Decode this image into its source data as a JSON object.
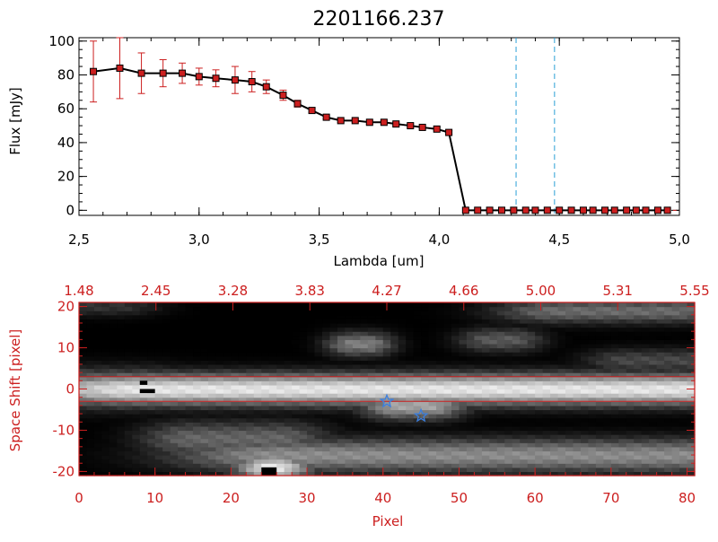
{
  "chart_data": [
    {
      "type": "line",
      "title": "2201166.237",
      "xlabel": "Lambda [um]",
      "ylabel": "Flux [mJy]",
      "xlim": [
        2.5,
        5.0
      ],
      "ylim": [
        -3,
        102
      ],
      "x_ticks": [
        "2.5",
        "3.0",
        "3.5",
        "4.0",
        "4.5",
        "5.0"
      ],
      "y_ticks": [
        "0",
        "20",
        "40",
        "60",
        "80",
        "100"
      ],
      "colors": {
        "line": "#000000",
        "marker": "#cc1f1f",
        "error_bar": "#cc1f1f",
        "vline": "#2a9fd6",
        "zero_line": "#cc1f1f"
      },
      "vertical_lines_x": [
        4.32,
        4.48
      ],
      "series": [
        {
          "x": [
            2.56,
            2.67,
            2.76,
            2.85,
            2.93,
            3.0,
            3.07,
            3.15,
            3.22,
            3.28,
            3.35,
            3.41,
            3.47,
            3.53,
            3.59,
            3.65,
            3.71,
            3.77,
            3.82,
            3.88,
            3.93,
            3.99,
            4.04,
            4.11,
            4.16,
            4.21,
            4.26,
            4.31,
            4.36,
            4.4,
            4.45,
            4.5,
            4.55,
            4.6,
            4.64,
            4.69,
            4.73,
            4.78,
            4.82,
            4.86,
            4.91,
            4.95
          ],
          "y": [
            82,
            84,
            81,
            81,
            81,
            79,
            78,
            77,
            76,
            73,
            68,
            63,
            59,
            55,
            53,
            53,
            52,
            52,
            51,
            50,
            49,
            48,
            46,
            0,
            0,
            0,
            0,
            0,
            0,
            0,
            0,
            0,
            0,
            0,
            0,
            0,
            0,
            0,
            0,
            0,
            0,
            0
          ],
          "error": [
            18,
            18,
            12,
            8,
            6,
            5,
            5,
            8,
            6,
            4,
            3,
            2,
            1.5,
            1,
            1,
            1,
            1,
            1,
            1,
            1,
            1,
            1,
            1,
            0,
            0,
            0,
            0,
            0,
            0,
            0,
            0,
            0,
            0,
            0,
            0,
            0,
            0,
            0,
            0,
            0,
            0,
            0
          ]
        }
      ]
    },
    {
      "type": "heatmap",
      "xlabel": "Pixel",
      "ylabel": "Space Shift [pixel]",
      "xlim": [
        0,
        81
      ],
      "ylim": [
        -21,
        21
      ],
      "x_ticks": [
        "0",
        "10",
        "20",
        "30",
        "40",
        "50",
        "60",
        "70",
        "80"
      ],
      "y_ticks": [
        "-20",
        "-10",
        "0",
        "10",
        "20"
      ],
      "top_axis_ticks": [
        "1.48",
        "2.45",
        "3.28",
        "3.83",
        "4.27",
        "4.66",
        "5.00",
        "5.31",
        "5.55"
      ],
      "colormap": "grayscale",
      "colors": {
        "axis": "#cc1f1f",
        "marker": "#3a7fe0"
      },
      "extraction_lines_y": [
        3,
        -3
      ],
      "markers": [
        {
          "x": 40.5,
          "y": -3
        },
        {
          "x": 45,
          "y": -6.5
        }
      ],
      "blobs": [
        {
          "x0": 8,
          "x1": 80,
          "y": 0,
          "sx": 12,
          "sy": 2.6,
          "amp": 0.9
        },
        {
          "x0": 0,
          "x1": 8,
          "y": 0.2,
          "sx": 6,
          "sy": 3,
          "amp": 0.6
        },
        {
          "x0": 26,
          "x1": 80,
          "y": -16,
          "sx": 10,
          "sy": 2.8,
          "amp": 0.55
        },
        {
          "x0": 15,
          "x1": 26,
          "y": -12,
          "sx": 5,
          "sy": 3,
          "amp": 0.4
        },
        {
          "x0": 42,
          "x1": 46,
          "y": -4,
          "sx": 3.5,
          "sy": 2.2,
          "amp": 0.65
        },
        {
          "x0": 36,
          "x1": 38,
          "y": 11,
          "sx": 2.5,
          "sy": 2,
          "amp": 0.5
        },
        {
          "x0": 63,
          "x1": 78,
          "y": 19,
          "sx": 6,
          "sy": 2,
          "amp": 0.42
        },
        {
          "x0": 54,
          "x1": 57,
          "y": 12,
          "sx": 3,
          "sy": 2,
          "amp": 0.35
        },
        {
          "x0": 0,
          "x1": 5,
          "y": 20,
          "sx": 4,
          "sy": 1.5,
          "amp": 0.2
        },
        {
          "x0": 72,
          "x1": 80,
          "y": 7,
          "sx": 4,
          "sy": 2,
          "amp": 0.28
        }
      ],
      "peaks": [
        {
          "x": 8.5,
          "y": 0.5,
          "sx": 2.0,
          "sy": 1.8,
          "amp": 0.95
        },
        {
          "x": 25.5,
          "y": -19,
          "sx": 3.5,
          "sy": 2.0,
          "amp": 0.95
        }
      ],
      "dead_pixels": [
        {
          "x0": 8,
          "x1": 10,
          "y0": -1,
          "y1": 0
        },
        {
          "x0": 24,
          "x1": 26,
          "y0": -21,
          "y1": -19
        },
        {
          "x0": 8,
          "x1": 9,
          "y0": 1,
          "y1": 2
        }
      ]
    }
  ]
}
